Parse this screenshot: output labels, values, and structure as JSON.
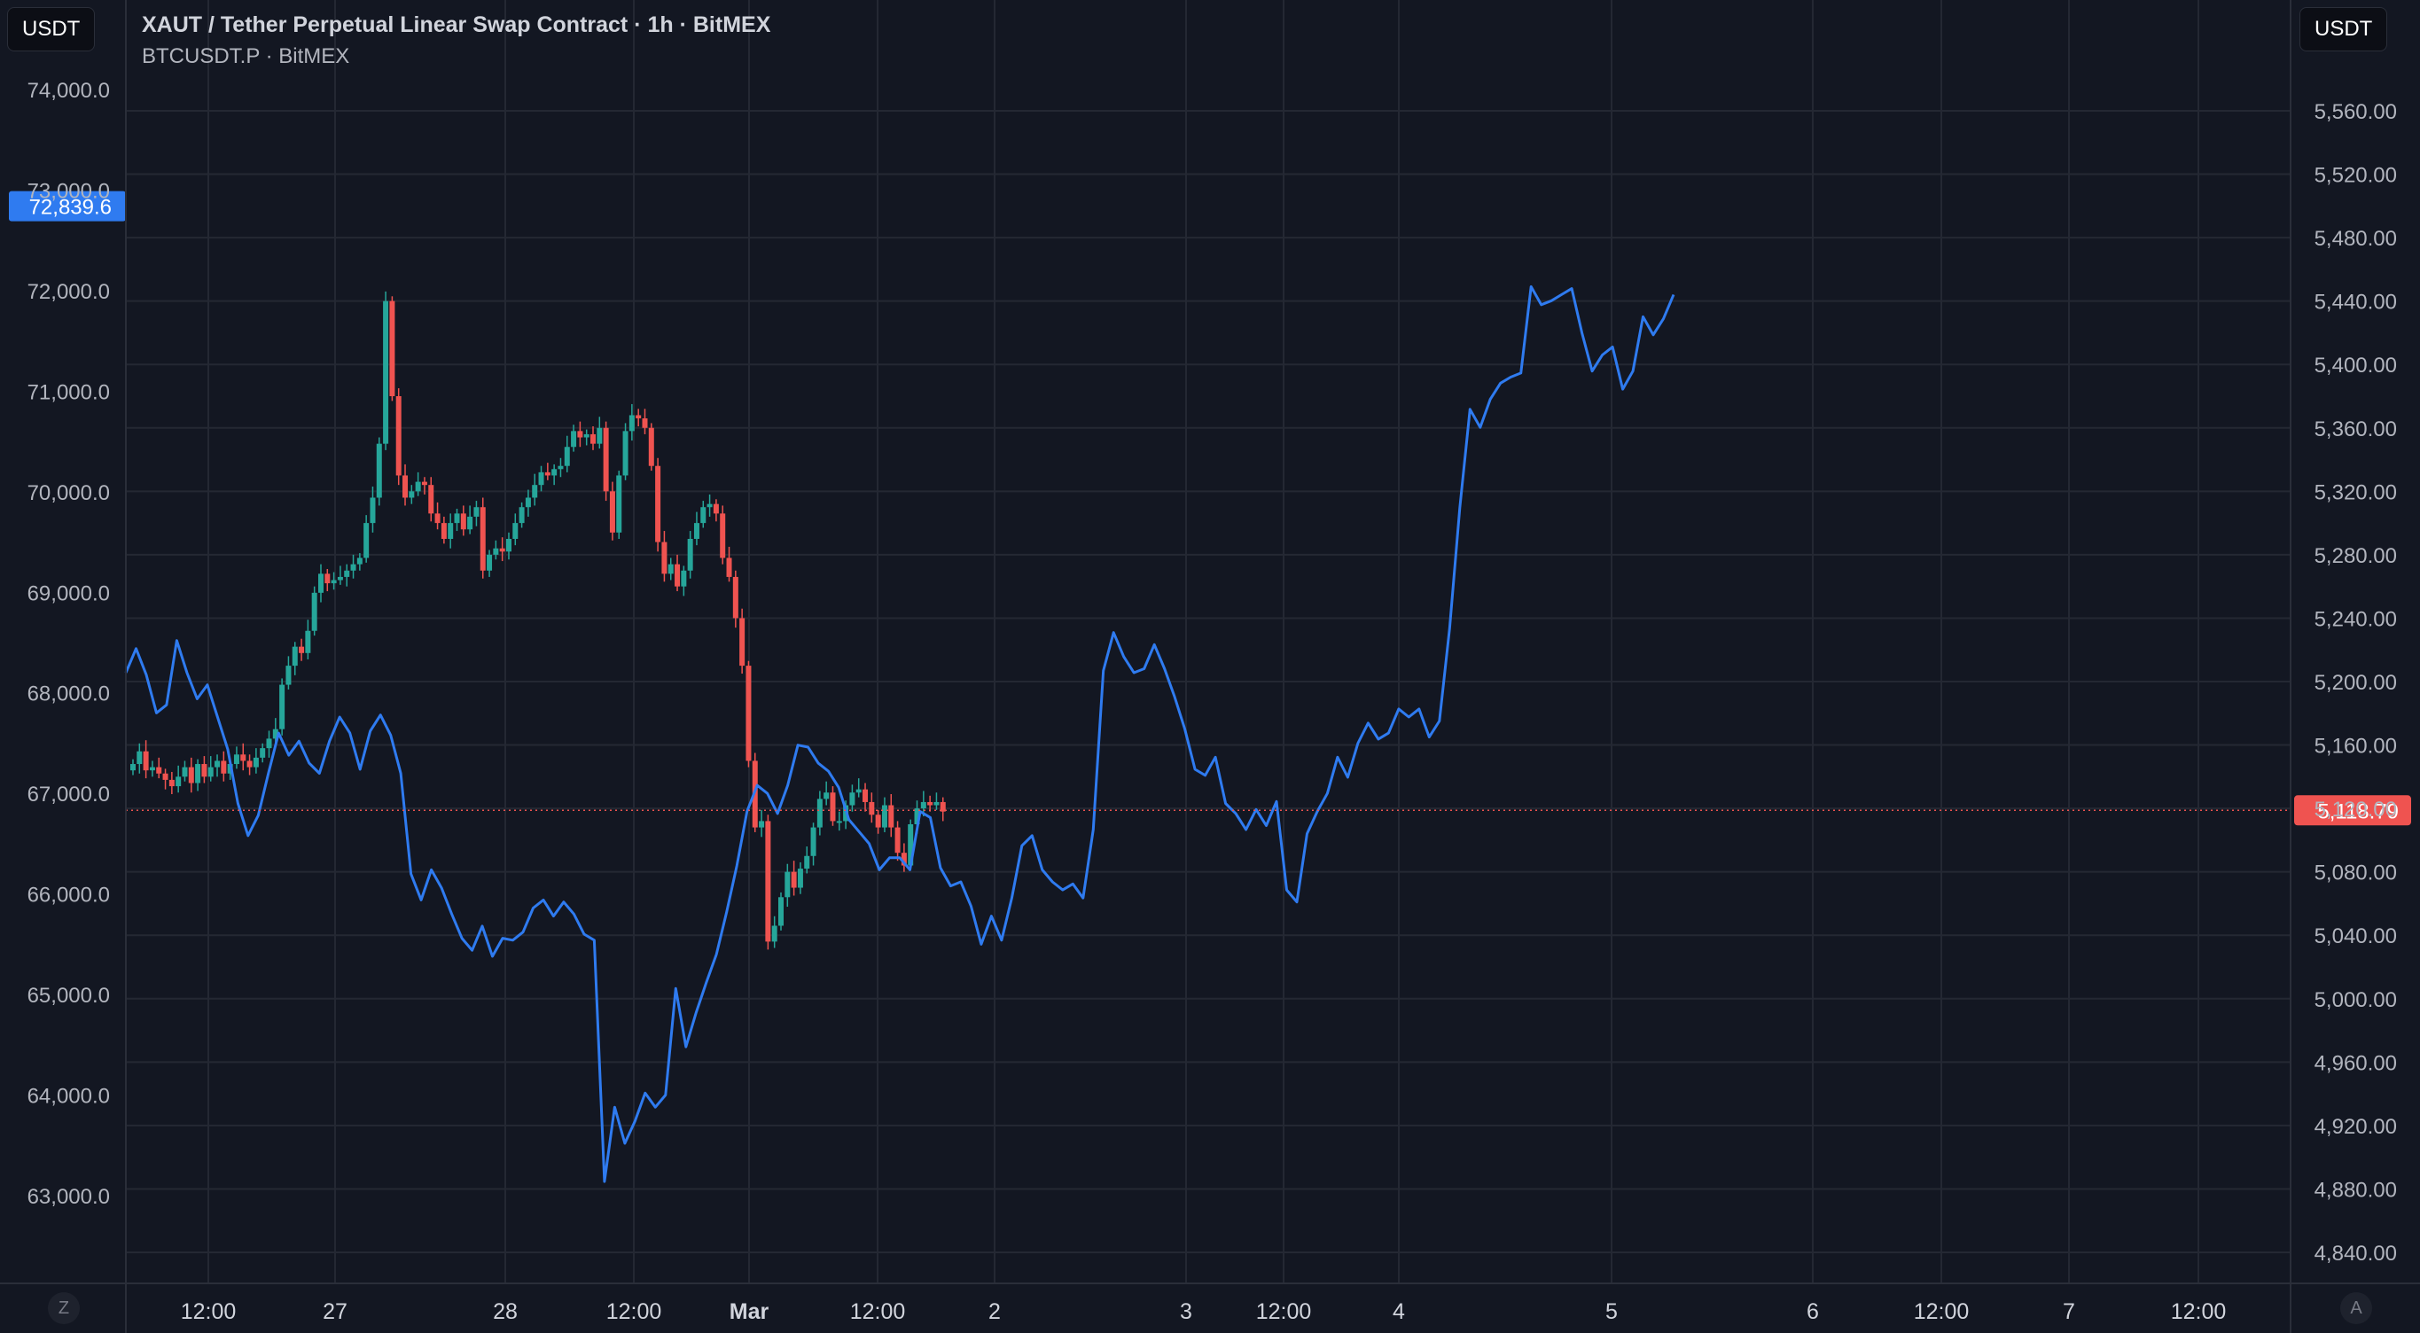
{
  "header": {
    "left_currency": "USDT",
    "right_currency": "USDT",
    "title": "XAUT / Tether Perpetual Linear Swap Contract · 1h · BitMEX",
    "subtitle": "BTCUSDT.P · BitMEX"
  },
  "footer": {
    "left_button": "Z",
    "right_button": "A"
  },
  "colors": {
    "background": "#131722",
    "up": "#26a69a",
    "down": "#ef5350",
    "line": "#2f7bf0",
    "grid": "#242833",
    "text": "#b2b5be"
  },
  "chart_data": {
    "type": "candlestick+line",
    "x_ticks": [
      "12:00",
      "27",
      "28",
      "12:00",
      "Mar",
      "12:00",
      "2",
      "3",
      "12:00",
      "4",
      "5",
      "6",
      "12:00",
      "7",
      "12:00"
    ],
    "left_axis": {
      "series": "BTCUSDT.P · BitMEX",
      "range": [
        62400,
        74500
      ],
      "ticks": [
        "74,000.0",
        "73,000.0",
        "72,000.0",
        "71,000.0",
        "70,000.0",
        "69,000.0",
        "68,000.0",
        "67,000.0",
        "66,000.0",
        "65,000.0",
        "64,000.0",
        "63,000.0"
      ],
      "last_value": "72,839.6",
      "line_values": [
        68200,
        68440,
        68180,
        67800,
        67880,
        68520,
        68200,
        67940,
        68080,
        67760,
        67440,
        66900,
        66580,
        66780,
        67200,
        67600,
        67380,
        67520,
        67300,
        67200,
        67520,
        67760,
        67600,
        67240,
        67620,
        67780,
        67580,
        67200,
        66200,
        65940,
        66240,
        66060,
        65800,
        65560,
        65440,
        65680,
        65380,
        65560,
        65540,
        65620,
        65860,
        65940,
        65780,
        65920,
        65800,
        65600,
        65540,
        63140,
        63880,
        63520,
        63740,
        64020,
        63880,
        64000,
        65060,
        64480,
        64820,
        65120,
        65400,
        65820,
        66280,
        66820,
        67080,
        67000,
        66800,
        67080,
        67480,
        67460,
        67300,
        67220,
        67060,
        66740,
        66620,
        66500,
        66240,
        66360,
        66360,
        66240,
        66820,
        66760,
        66260,
        66080,
        66120,
        65880,
        65500,
        65780,
        65540,
        65960,
        66480,
        66580,
        66240,
        66120,
        66040,
        66100,
        65960,
        66640,
        68220,
        68600,
        68360,
        68200,
        68240,
        68480,
        68240,
        67960,
        67640,
        67240,
        67180,
        67360,
        66900,
        66800,
        66640,
        66840,
        66680,
        66920,
        66040,
        65920,
        66600,
        66820,
        67000,
        67360,
        67160,
        67500,
        67700,
        67540,
        67600,
        67840,
        67760,
        67840,
        67560,
        67720,
        68640,
        69840,
        70820,
        70640,
        70920,
        71080,
        71140,
        71180,
        72040,
        71860,
        71900,
        71960,
        72020,
        71580,
        71200,
        71360,
        71440,
        71020,
        71200,
        71740,
        71560,
        71720,
        71960
      ],
      "line_x_offset": 0
    },
    "right_axis": {
      "series": "XAUT / Tether Perpetual Linear Swap Contract · 1h · BitMEX",
      "range": [
        4820,
        5580
      ],
      "ticks": [
        "5,560.00",
        "5,520.00",
        "5,480.00",
        "5,440.00",
        "5,400.00",
        "5,360.00",
        "5,320.00",
        "5,280.00",
        "5,240.00",
        "5,200.00",
        "5,160.00",
        "5,120.00",
        "5,080.00",
        "5,040.00",
        "5,000.00",
        "4,960.00",
        "4,920.00",
        "4,880.00",
        "4,840.00"
      ],
      "last_value": "5,118.79",
      "last_numeric": 5118.79,
      "candle_close_path": [
        5148,
        5156,
        5144,
        5146,
        5142,
        5138,
        5134,
        5140,
        5146,
        5136,
        5148,
        5140,
        5146,
        5150,
        5142,
        5148,
        5154,
        5150,
        5146,
        5152,
        5158,
        5164,
        5170,
        5198,
        5210,
        5222,
        5218,
        5232,
        5256,
        5268,
        5262,
        5264,
        5266,
        5270,
        5274,
        5278,
        5300,
        5316,
        5350,
        5440,
        5380,
        5330,
        5316,
        5320,
        5326,
        5324,
        5306,
        5300,
        5290,
        5300,
        5306,
        5296,
        5304,
        5310,
        5270,
        5280,
        5284,
        5282,
        5290,
        5300,
        5310,
        5316,
        5324,
        5332,
        5330,
        5334,
        5336,
        5348,
        5358,
        5354,
        5356,
        5350,
        5360,
        5320,
        5294,
        5330,
        5358,
        5368,
        5366,
        5360,
        5336,
        5288,
        5268,
        5274,
        5260,
        5270,
        5290,
        5300,
        5310,
        5312,
        5306,
        5278,
        5266,
        5240,
        5210,
        5150,
        5108,
        5112,
        5036,
        5046,
        5064,
        5080,
        5070,
        5082,
        5090,
        5108,
        5126,
        5130,
        5112,
        5112,
        5122,
        5130,
        5132,
        5124,
        5116,
        5108,
        5122,
        5108,
        5092,
        5084,
        5110,
        5120,
        5124,
        5122,
        5124,
        5118
      ]
    }
  }
}
